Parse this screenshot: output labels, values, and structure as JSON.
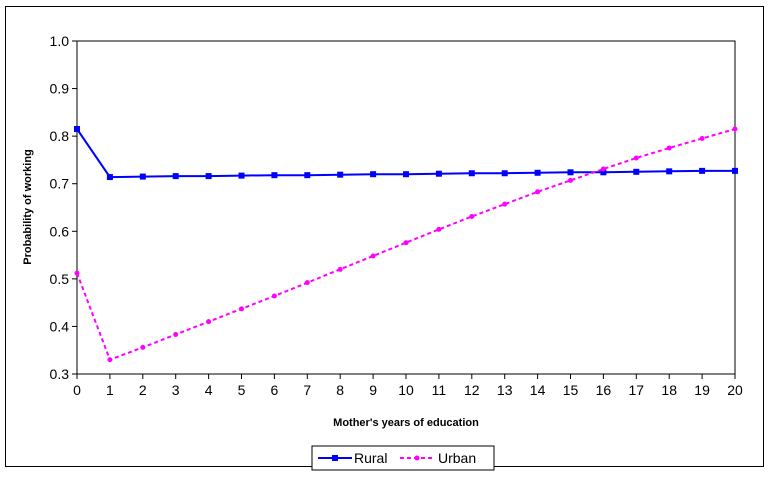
{
  "chart_data": {
    "type": "line",
    "title": "",
    "xlabel": "Mother's years of education",
    "ylabel": "Probability of working",
    "x": [
      0,
      1,
      2,
      3,
      4,
      5,
      6,
      7,
      8,
      9,
      10,
      11,
      12,
      13,
      14,
      15,
      16,
      17,
      18,
      19,
      20
    ],
    "ylim": [
      0.3,
      1.0
    ],
    "yticks": [
      "0.3",
      "0.4",
      "0.5",
      "0.6",
      "0.7",
      "0.8",
      "0.9",
      "1.0"
    ],
    "grid": false,
    "legend_position": "bottom",
    "series": [
      {
        "name": "Rural",
        "color": "#0000ff",
        "style": "solid",
        "marker": "square",
        "values": [
          0.815,
          0.714,
          0.715,
          0.716,
          0.716,
          0.717,
          0.718,
          0.718,
          0.719,
          0.72,
          0.72,
          0.721,
          0.722,
          0.722,
          0.723,
          0.724,
          0.724,
          0.725,
          0.726,
          0.727,
          0.727
        ]
      },
      {
        "name": "Urban",
        "color": "#ff00ff",
        "style": "dashed",
        "marker": "circle",
        "values": [
          0.512,
          0.33,
          0.356,
          0.383,
          0.41,
          0.437,
          0.464,
          0.492,
          0.52,
          0.548,
          0.576,
          0.604,
          0.631,
          0.657,
          0.683,
          0.707,
          0.731,
          0.754,
          0.775,
          0.795,
          0.815
        ]
      }
    ]
  }
}
